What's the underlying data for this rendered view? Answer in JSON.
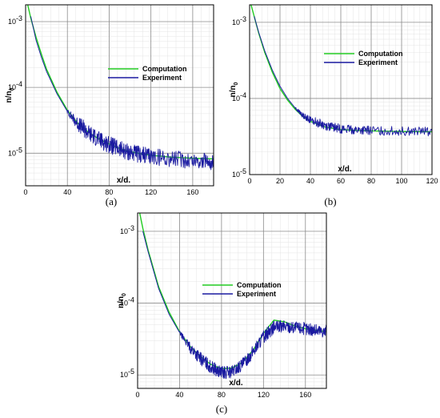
{
  "chart_data": [
    {
      "type": "line",
      "caption": "(a)",
      "xlabel": "x/d.",
      "ylabel_main": "n/n",
      "ylabel_sub": "0",
      "y_scale": "log",
      "xlim": [
        0,
        180
      ],
      "ylim": [
        3.2e-06,
        0.0018
      ],
      "x_ticks": [
        0,
        40,
        80,
        120,
        160
      ],
      "x_tick_labels": [
        "0",
        "40",
        "80",
        "120",
        "160"
      ],
      "y_ticks": [
        0.001,
        0.0001,
        1e-05
      ],
      "y_tick_labels": [
        {
          "base": "10",
          "exp": "-3"
        },
        {
          "base": "10",
          "exp": "-4"
        },
        {
          "base": "10",
          "exp": "-5"
        }
      ],
      "grid": true,
      "legend": "center-right",
      "series": [
        {
          "name": "Computation",
          "color": "#22cc22",
          "x": [
            0,
            5,
            10,
            15,
            20,
            30,
            40,
            50,
            60,
            70,
            80,
            90,
            100,
            110,
            120,
            140,
            160,
            180
          ],
          "y": [
            0.0025,
            0.00112,
            0.00058,
            0.000325,
            0.00019,
            8.5e-05,
            4.5e-05,
            2.85e-05,
            2.1e-05,
            1.65e-05,
            1.38e-05,
            1.18e-05,
            1.06e-05,
            9.8e-06,
            9.3e-06,
            8.7e-06,
            8.4e-06,
            8.2e-06
          ]
        },
        {
          "name": "Experiment",
          "color": "#1a1aa0",
          "x": [
            5,
            10,
            15,
            20,
            30,
            40,
            50,
            60,
            70,
            80,
            90,
            100,
            110,
            120,
            140,
            160,
            180
          ],
          "y": [
            0.0012,
            0.00052,
            0.00029,
            0.000175,
            8e-05,
            4.3e-05,
            2.8e-05,
            2.05e-05,
            1.62e-05,
            1.35e-05,
            1.15e-05,
            1.02e-05,
            9.5e-06,
            9e-06,
            8.3e-06,
            7.8e-06,
            7.4e-06
          ],
          "noise_from": 40,
          "noise_amp": 0.13
        }
      ]
    },
    {
      "type": "line",
      "caption": "(b)",
      "xlabel": "x/d.",
      "ylabel_main": "n/n",
      "ylabel_sub": "0",
      "y_scale": "log",
      "xlim": [
        0,
        120
      ],
      "ylim": [
        1e-05,
        0.0017
      ],
      "x_ticks": [
        0,
        20,
        40,
        60,
        80,
        100,
        120
      ],
      "x_tick_labels": [
        "0",
        "20",
        "40",
        "60",
        "80",
        "100",
        "120"
      ],
      "y_ticks": [
        0.001,
        0.0001,
        1e-05
      ],
      "y_tick_labels": [
        {
          "base": "10",
          "exp": "-3"
        },
        {
          "base": "10",
          "exp": "-4"
        },
        {
          "base": "10",
          "exp": "-5"
        }
      ],
      "grid": true,
      "legend": "top-right",
      "series": [
        {
          "name": "Computation",
          "color": "#22cc22",
          "x": [
            0,
            3,
            6,
            10,
            15,
            20,
            25,
            30,
            35,
            40,
            50,
            60,
            70,
            80,
            100,
            120
          ],
          "y": [
            0.002,
            0.0012,
            0.00072,
            0.0004,
            0.00022,
            0.000135,
            9.5e-05,
            7.2e-05,
            5.8e-05,
            5e-05,
            4.2e-05,
            3.9e-05,
            3.8e-05,
            3.75e-05,
            3.68e-05,
            3.65e-05
          ]
        },
        {
          "name": "Experiment",
          "color": "#1a1aa0",
          "x": [
            3,
            6,
            10,
            15,
            20,
            25,
            30,
            35,
            40,
            50,
            60,
            70,
            80,
            100,
            120
          ],
          "y": [
            0.0012,
            0.00074,
            0.00042,
            0.000235,
            0.000145,
            0.0001,
            7.5e-05,
            6e-05,
            5.2e-05,
            4.4e-05,
            4e-05,
            3.85e-05,
            3.78e-05,
            3.72e-05,
            3.68e-05
          ],
          "noise_from": 30,
          "noise_amp": 0.06
        }
      ]
    },
    {
      "type": "line",
      "caption": "(c)",
      "xlabel": "x/d.",
      "ylabel_main": "n/n",
      "ylabel_sub": "0",
      "y_scale": "log",
      "xlim": [
        0,
        180
      ],
      "ylim": [
        6.5e-06,
        0.0018
      ],
      "x_ticks": [
        0,
        40,
        80,
        120,
        160
      ],
      "x_tick_labels": [
        "0",
        "40",
        "80",
        "120",
        "160"
      ],
      "y_ticks": [
        0.001,
        0.0001,
        1e-05
      ],
      "y_tick_labels": [
        {
          "base": "10",
          "exp": "-3"
        },
        {
          "base": "10",
          "exp": "-4"
        },
        {
          "base": "10",
          "exp": "-5"
        }
      ],
      "grid": true,
      "legend": "center-right",
      "series": [
        {
          "name": "Computation",
          "color": "#22cc22",
          "x": [
            0,
            5,
            10,
            20,
            30,
            40,
            50,
            60,
            70,
            80,
            90,
            100,
            110,
            120,
            130,
            140,
            150,
            160,
            170,
            180
          ],
          "y": [
            0.0025,
            0.0011,
            0.00055,
            0.00017,
            7.5e-05,
            4e-05,
            2.5e-05,
            1.8e-05,
            1.4e-05,
            1.22e-05,
            1.25e-05,
            1.5e-05,
            2.2e-05,
            3.8e-05,
            5.8e-05,
            5.5e-05,
            4.8e-05,
            4.4e-05,
            4.2e-05,
            4e-05
          ]
        },
        {
          "name": "Experiment",
          "color": "#1a1aa0",
          "x": [
            5,
            10,
            20,
            30,
            40,
            50,
            60,
            70,
            80,
            90,
            100,
            110,
            120,
            130,
            140,
            150,
            160,
            170,
            180
          ],
          "y": [
            0.001,
            0.00052,
            0.00016,
            7e-05,
            3.9e-05,
            2.4e-05,
            1.7e-05,
            1.28e-05,
            1.08e-05,
            1.1e-05,
            1.38e-05,
            2.1e-05,
            3.4e-05,
            4.6e-05,
            4.75e-05,
            4.6e-05,
            4.4e-05,
            4.2e-05,
            4.05e-05
          ],
          "noise_from": 40,
          "noise_amp": 0.09
        }
      ]
    }
  ]
}
